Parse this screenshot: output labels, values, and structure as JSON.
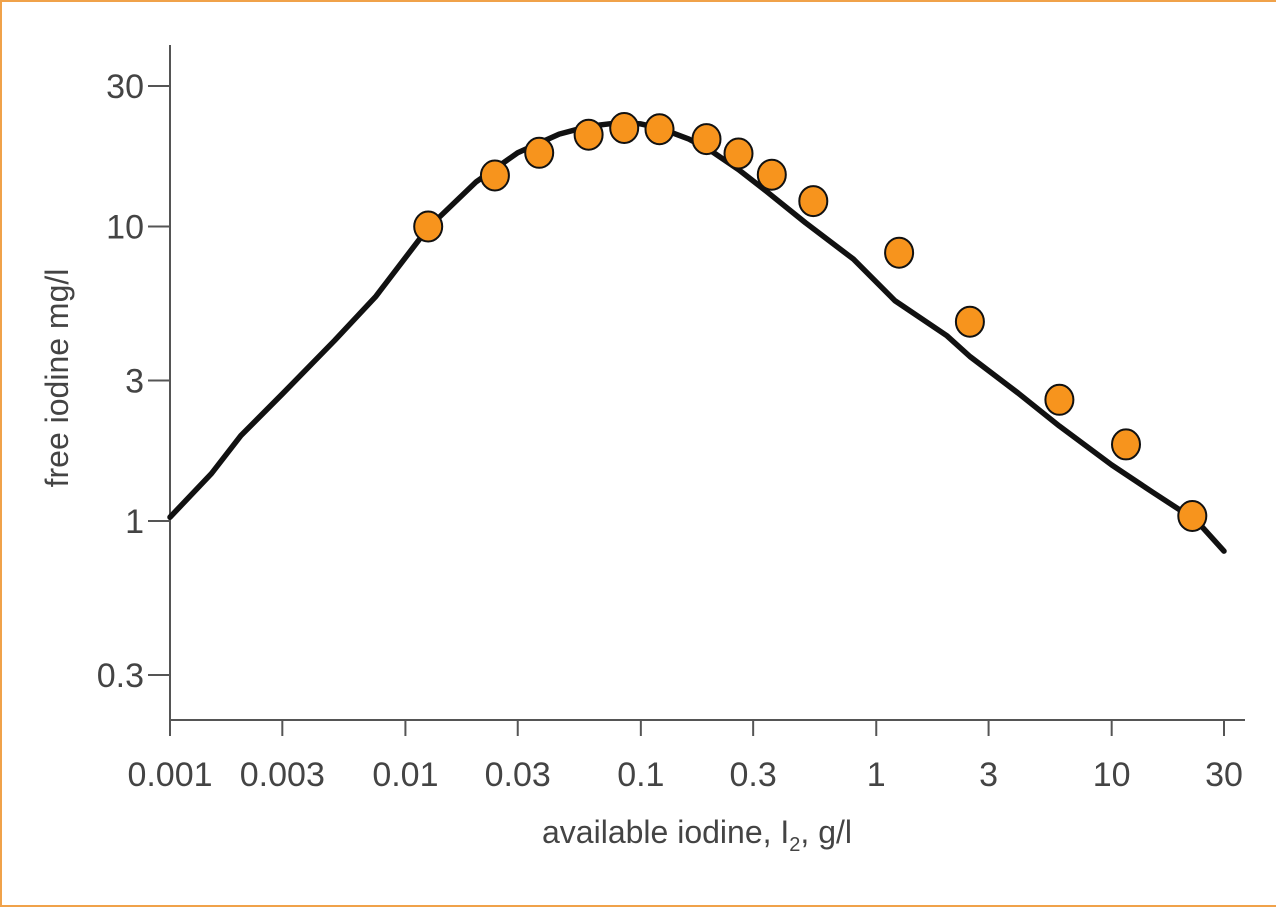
{
  "chart_data": {
    "type": "line",
    "xlabel": "available iodine, I",
    "xlabel_sub": "2",
    "xlabel_suffix": ", g/l",
    "ylabel": "free iodine mg/l",
    "x_scale": "log",
    "y_scale": "log",
    "xlim": [
      0.001,
      35
    ],
    "ylim": [
      0.17,
      45
    ],
    "x_ticks": [
      0.001,
      0.003,
      0.01,
      0.03,
      0.1,
      0.3,
      1,
      3,
      10,
      30
    ],
    "x_tick_labels": [
      "0.001",
      "0.003",
      "0.01",
      "0.03",
      "0.1",
      "0.3",
      "1",
      "3",
      "10",
      "30"
    ],
    "y_ticks": [
      0.3,
      1,
      3,
      10,
      30
    ],
    "y_tick_labels": [
      "0.3",
      "1",
      "3",
      "10",
      "30"
    ],
    "grid": false,
    "curve": {
      "x": [
        0.001,
        0.0015,
        0.002,
        0.003,
        0.005,
        0.0075,
        0.0125,
        0.02,
        0.03,
        0.045,
        0.06,
        0.08,
        0.1,
        0.12,
        0.16,
        0.2,
        0.26,
        0.34,
        0.5,
        0.8,
        1.2,
        2,
        2.5,
        4,
        6,
        10,
        15,
        23,
        30
      ],
      "y": [
        1.03,
        1.45,
        1.95,
        2.7,
        4.1,
        5.8,
        9.9,
        14.2,
        17.8,
        20.6,
        21.9,
        22.5,
        22.3,
        21.6,
        19.8,
        18.0,
        15.6,
        13.2,
        10.3,
        7.75,
        5.6,
        4.25,
        3.62,
        2.72,
        2.1,
        1.55,
        1.25,
        1.0,
        0.79
      ]
    },
    "points": {
      "x": [
        0.0125,
        0.024,
        0.037,
        0.06,
        0.085,
        0.12,
        0.19,
        0.26,
        0.36,
        0.54,
        1.25,
        2.5,
        6,
        11.5,
        22
      ],
      "y": [
        10.0,
        14.9,
        17.8,
        20.5,
        21.6,
        21.4,
        19.8,
        17.7,
        15.0,
        12.2,
        8.15,
        4.75,
        2.58,
        1.82,
        1.04
      ],
      "color": "#f7941d",
      "edge_color": "#111111"
    },
    "line_color": "#111111",
    "axis_color": "#555555",
    "frame_color": "#f0a24a"
  }
}
